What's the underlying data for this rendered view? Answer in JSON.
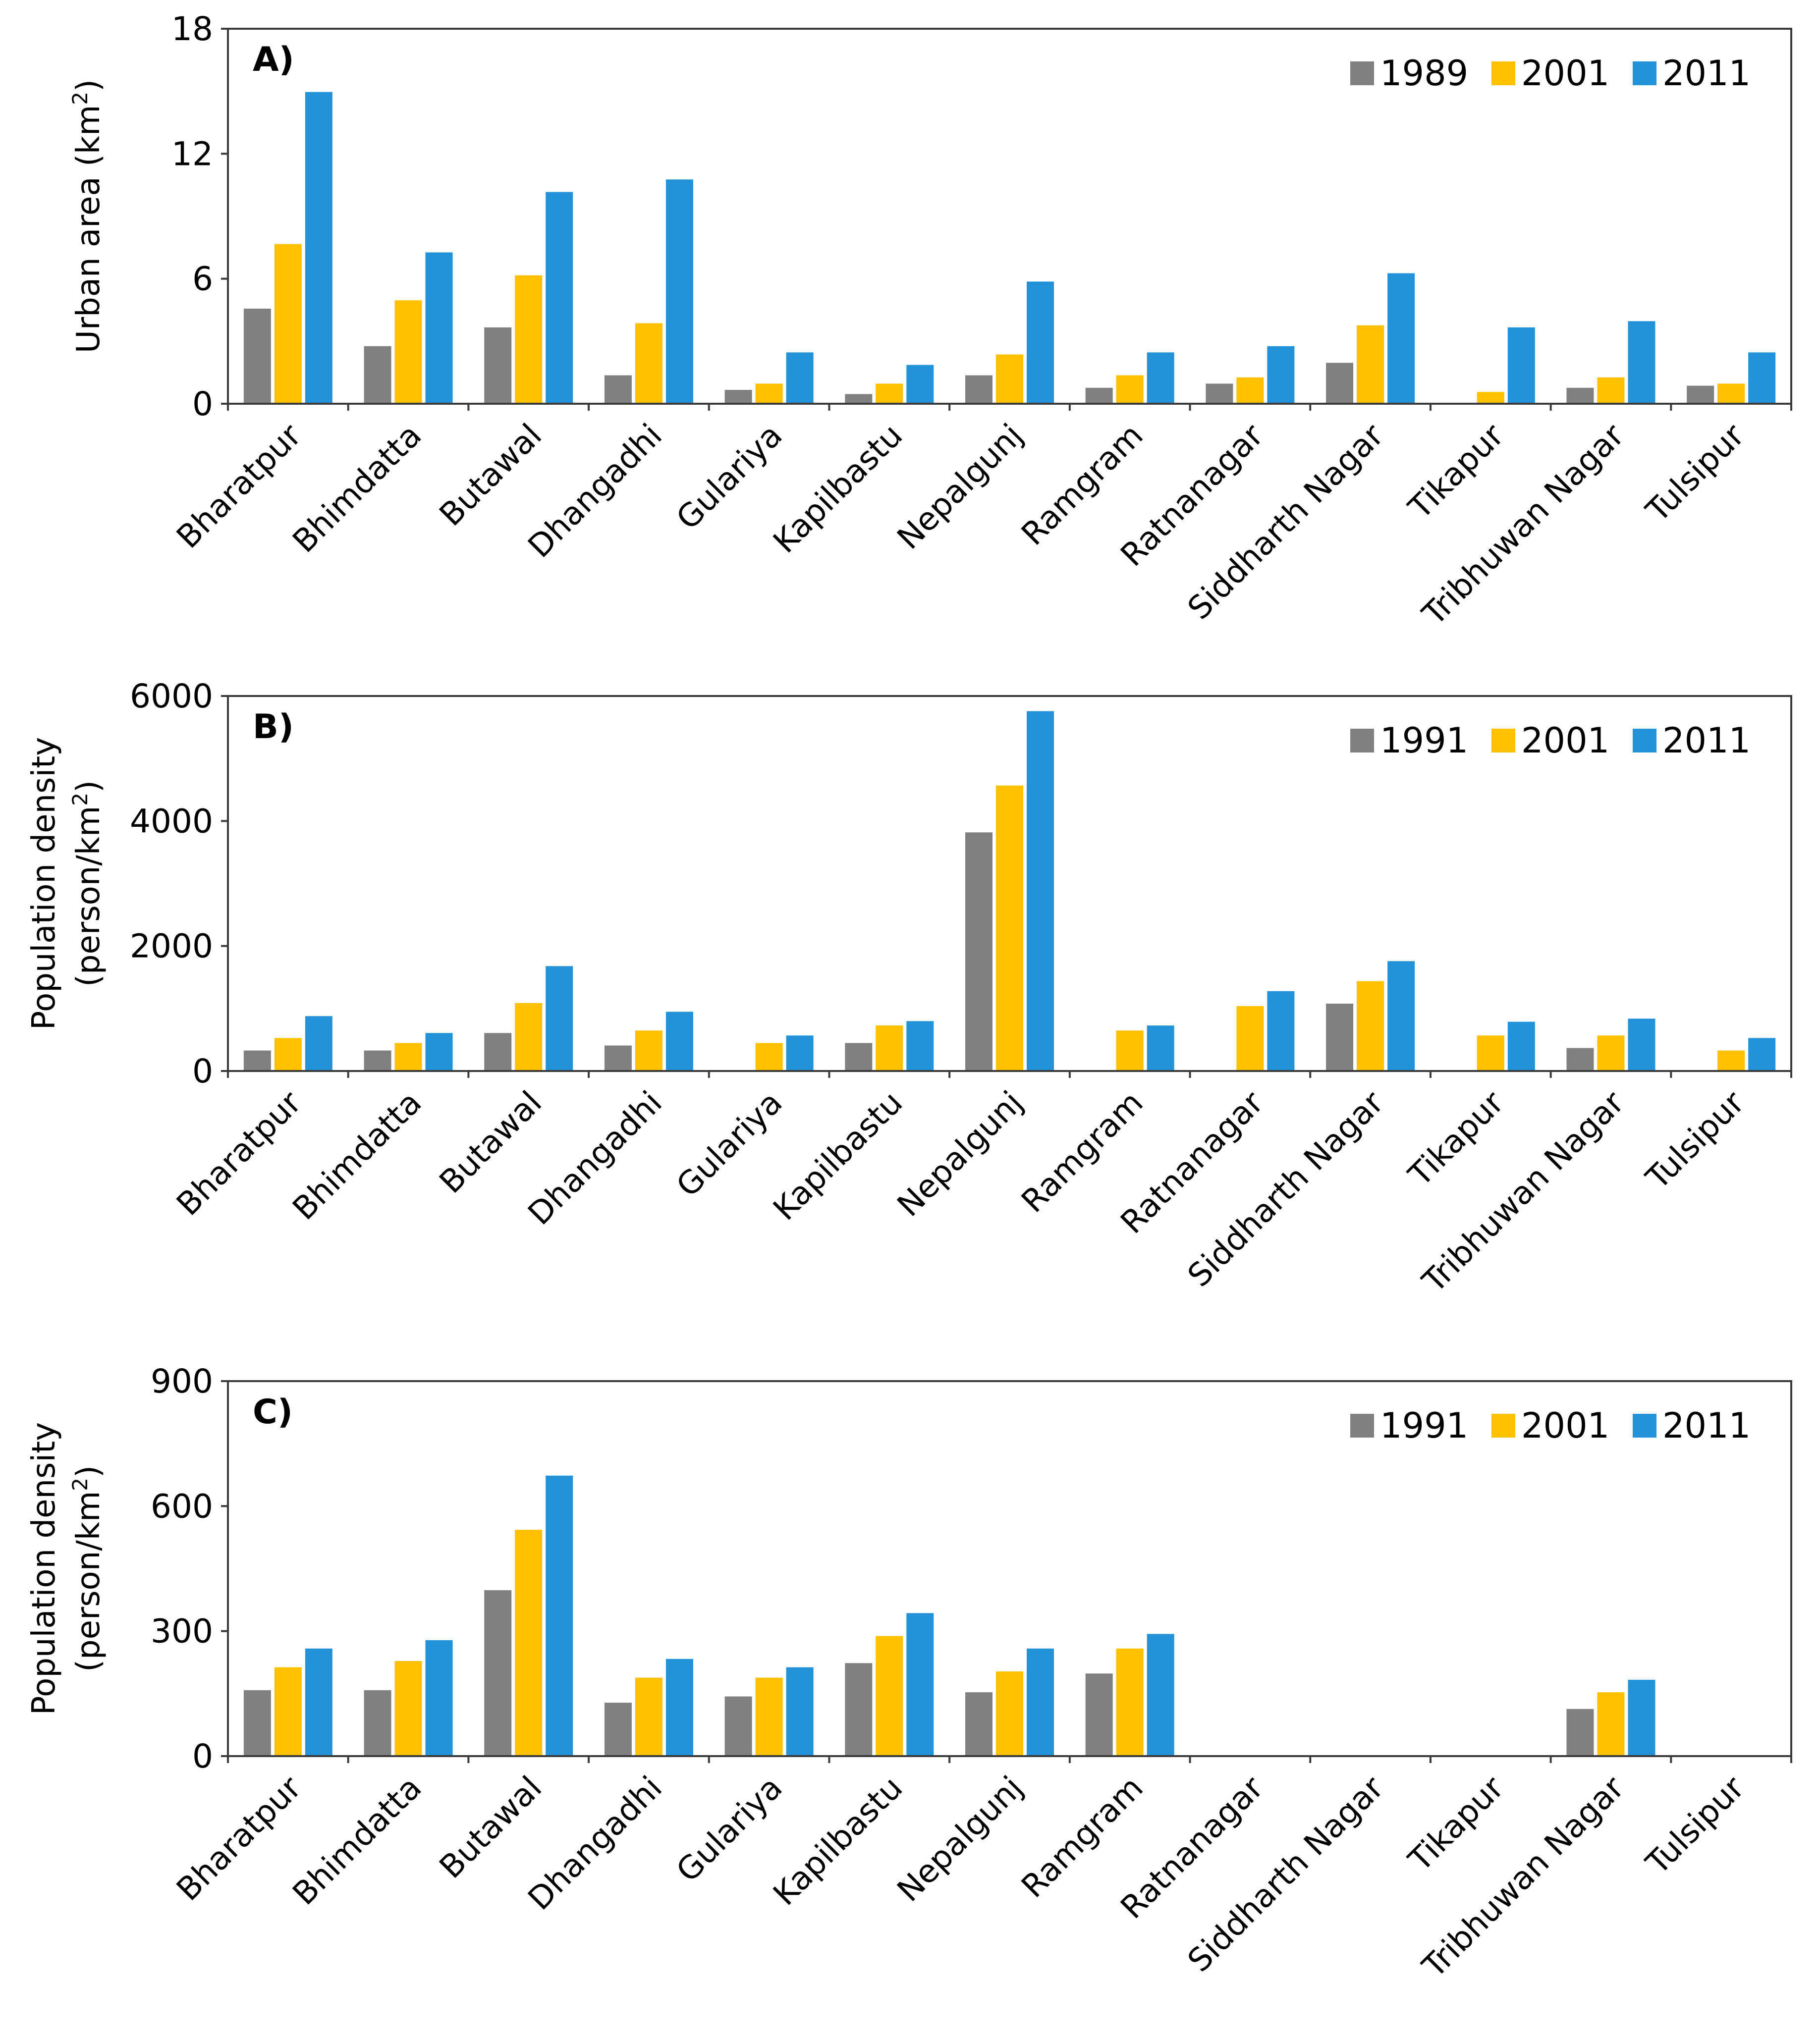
{
  "colors": {
    "gray": "#808080",
    "yellow": "#FFC000",
    "blue": "#2492D9"
  },
  "chart_data": [
    {
      "type": "bar",
      "panel_label": "A)",
      "ylabel_main": "Urban area (km",
      "ylabel_sup": "2",
      "ylabel_tail": ")",
      "ylabel_line2": "",
      "ylim": [
        0,
        18
      ],
      "yticks": [
        0,
        6,
        12,
        18
      ],
      "legend_position": "top-right",
      "categories": [
        "Bharatpur",
        "Bhimdatta",
        "Butawal",
        "Dhangadhi",
        "Gulariya",
        "Kapilbastu",
        "Nepalgunj",
        "Ramgram",
        "Ratnanagar",
        "Siddharth Nagar",
        "Tikapur",
        "Tribhuwan Nagar",
        "Tulsipur"
      ],
      "series": [
        {
          "name": "1989",
          "color": "#808080",
          "values": [
            4.6,
            2.8,
            3.7,
            1.4,
            0.7,
            0.5,
            1.4,
            0.8,
            1.0,
            2.0,
            0,
            0.8,
            0.9
          ]
        },
        {
          "name": "2001",
          "color": "#FFC000",
          "values": [
            7.7,
            5.0,
            6.2,
            3.9,
            1.0,
            1.0,
            2.4,
            1.4,
            1.3,
            3.8,
            0.6,
            1.3,
            1.0
          ]
        },
        {
          "name": "2011",
          "color": "#2492D9",
          "values": [
            15.0,
            7.3,
            10.2,
            10.8,
            2.5,
            1.9,
            5.9,
            2.5,
            2.8,
            6.3,
            3.7,
            4.0,
            2.5
          ]
        }
      ]
    },
    {
      "type": "bar",
      "panel_label": "B)",
      "ylabel_main": "Population density",
      "ylabel_line2": "(person/km",
      "ylabel_sup": "2",
      "ylabel_tail": ")",
      "ylim": [
        0,
        6000
      ],
      "yticks": [
        0,
        2000,
        4000,
        6000
      ],
      "legend_position": "top-right",
      "categories": [
        "Bharatpur",
        "Bhimdatta",
        "Butawal",
        "Dhangadhi",
        "Gulariya",
        "Kapilbastu",
        "Nepalgunj",
        "Ramgram",
        "Ratnanagar",
        "Siddharth Nagar",
        "Tikapur",
        "Tribhuwan Nagar",
        "Tulsipur"
      ],
      "series": [
        {
          "name": "1991",
          "color": "#808080",
          "values": [
            340,
            340,
            620,
            420,
            0,
            460,
            3830,
            0,
            0,
            1090,
            0,
            380,
            0
          ]
        },
        {
          "name": "2001",
          "color": "#FFC000",
          "values": [
            540,
            460,
            1100,
            660,
            460,
            740,
            4580,
            660,
            1050,
            1450,
            580,
            580,
            340
          ]
        },
        {
          "name": "2011",
          "color": "#2492D9",
          "values": [
            890,
            620,
            1690,
            960,
            580,
            810,
            5770,
            740,
            1290,
            1770,
            800,
            850,
            540
          ]
        }
      ]
    },
    {
      "type": "bar",
      "panel_label": "C)",
      "ylabel_main": "Population density",
      "ylabel_line2": "(person/km",
      "ylabel_sup": "2",
      "ylabel_tail": ")",
      "ylim": [
        0,
        900
      ],
      "yticks": [
        0,
        300,
        600,
        900
      ],
      "legend_position": "top-right",
      "categories": [
        "Bharatpur",
        "Bhimdatta",
        "Butawal",
        "Dhangadhi",
        "Gulariya",
        "Kapilbastu",
        "Nepalgunj",
        "Ramgram",
        "Ratnanagar",
        "Siddharth Nagar",
        "Tikapur",
        "Tribhuwan Nagar",
        "Tulsipur"
      ],
      "series": [
        {
          "name": "1991",
          "color": "#808080",
          "values": [
            160,
            160,
            400,
            130,
            145,
            225,
            155,
            200,
            0,
            0,
            0,
            115,
            0
          ]
        },
        {
          "name": "2001",
          "color": "#FFC000",
          "values": [
            215,
            230,
            545,
            190,
            190,
            290,
            205,
            260,
            0,
            0,
            0,
            155,
            0
          ]
        },
        {
          "name": "2011",
          "color": "#2492D9",
          "values": [
            260,
            280,
            675,
            235,
            215,
            345,
            260,
            295,
            0,
            0,
            0,
            185,
            0
          ]
        }
      ]
    }
  ]
}
